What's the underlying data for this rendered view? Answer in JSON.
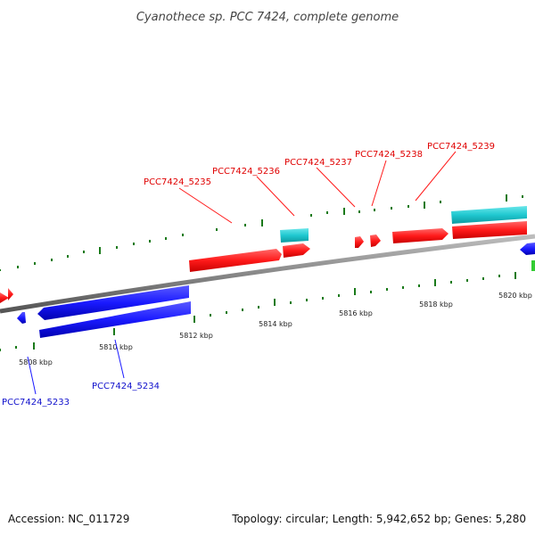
{
  "title": "Cyanothece sp. PCC 7424, complete genome",
  "footer": {
    "accession": "Accession: NC_011729",
    "summary": "Topology: circular; Length: 5,942,652 bp; Genes: 5,280"
  },
  "scale_labels": [
    "5808 kbp",
    "5810 kbp",
    "5812 kbp",
    "5814 kbp",
    "5816 kbp",
    "5818 kbp",
    "5820 kbp"
  ],
  "gene_labels": [
    {
      "id": "PCC7424_5233",
      "strand": "reverse"
    },
    {
      "id": "PCC7424_5234",
      "strand": "reverse"
    },
    {
      "id": "PCC7424_5235",
      "strand": "forward"
    },
    {
      "id": "PCC7424_5236",
      "strand": "forward"
    },
    {
      "id": "PCC7424_5237",
      "strand": "forward"
    },
    {
      "id": "PCC7424_5238",
      "strand": "forward"
    },
    {
      "id": "PCC7424_5239",
      "strand": "forward"
    }
  ],
  "colors": {
    "forward_cds": "#ff1a1a",
    "reverse_cds": "#1a1aff",
    "rna_feature": "#20c8d0",
    "backbone": "#888888",
    "minor_tick": "#1a7a1a",
    "green_feature": "#33cc33"
  }
}
